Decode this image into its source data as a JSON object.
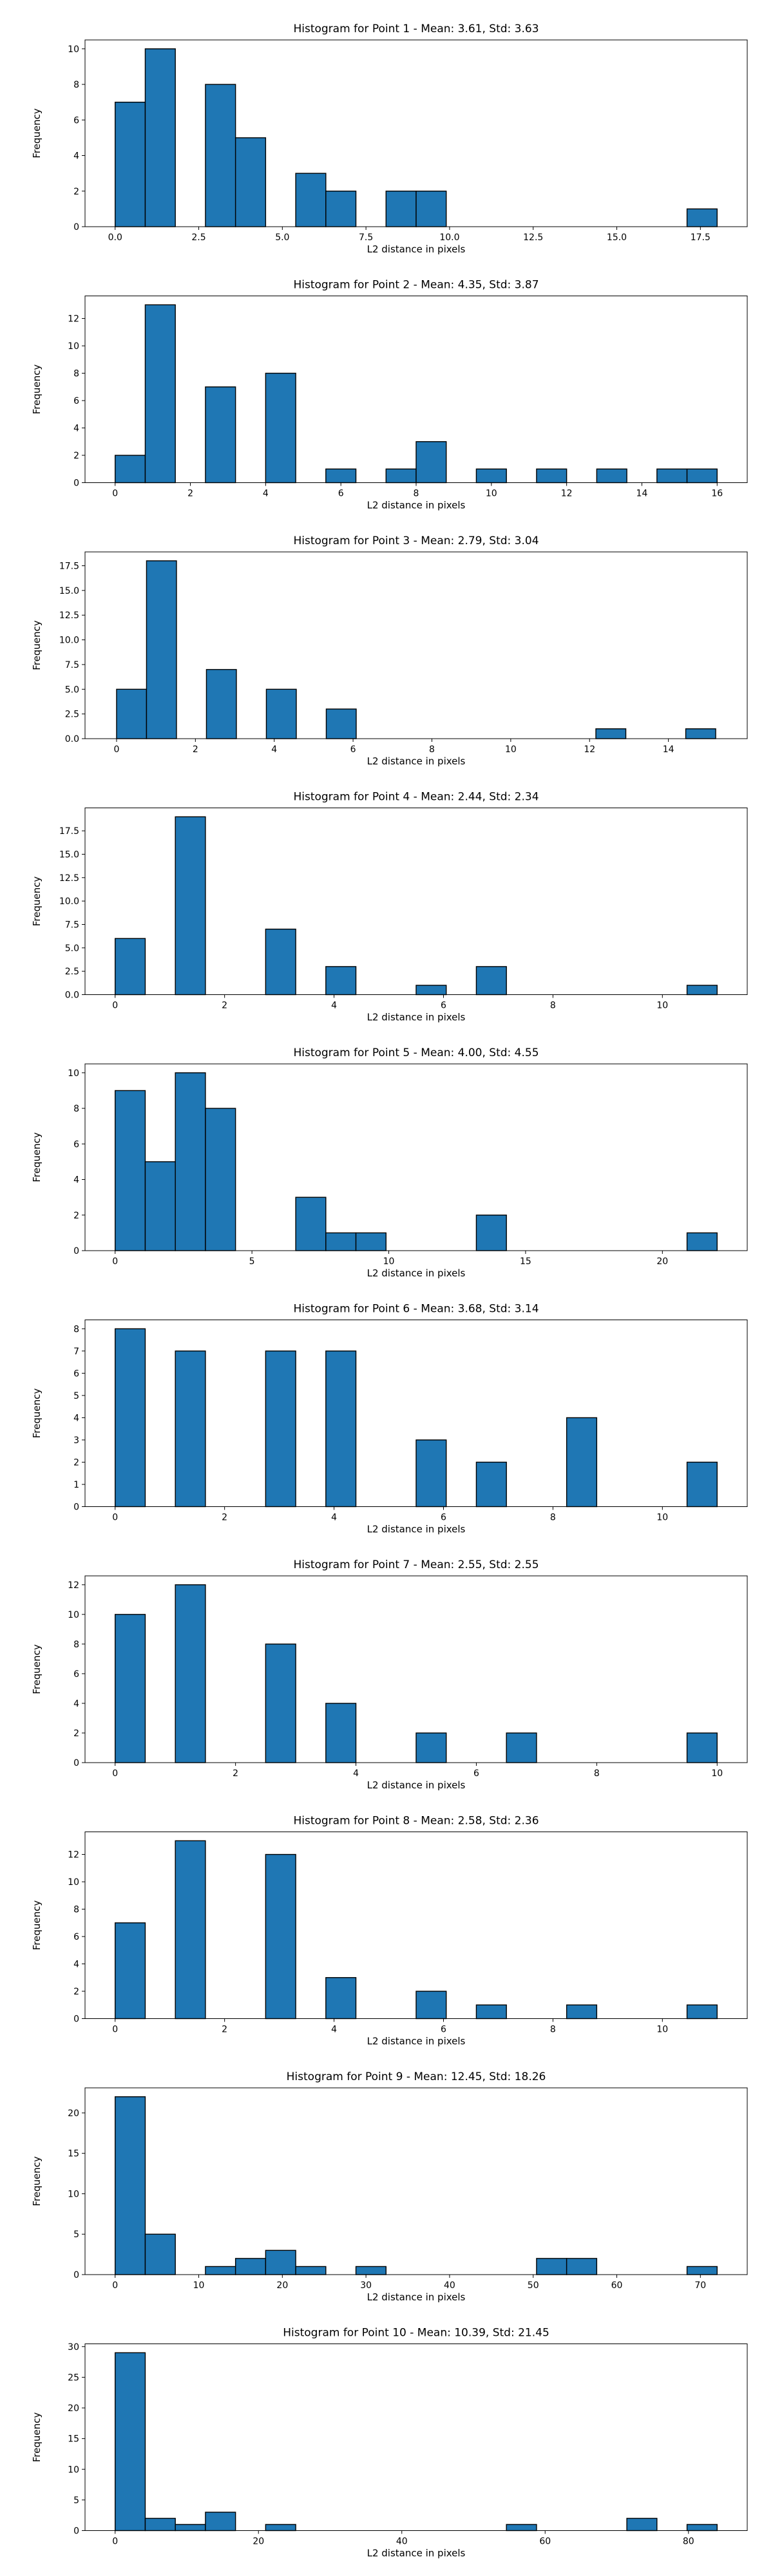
{
  "chart_data": [
    {
      "type": "bar",
      "title": "Histogram for Point 1 - Mean: 3.61, Std: 3.63",
      "xlabel": "L2 distance in pixels",
      "ylabel": "Frequency",
      "xlim": [
        -0.9,
        18.9
      ],
      "ylim": [
        0,
        10.5
      ],
      "xticks": [
        0,
        2.5,
        5,
        7.5,
        10,
        12.5,
        15,
        17.5
      ],
      "xtick_labels": [
        "0.0",
        "2.5",
        "5.0",
        "7.5",
        "10.0",
        "12.5",
        "15.0",
        "17.5"
      ],
      "yticks": [
        0,
        2,
        4,
        6,
        8,
        10
      ],
      "ytick_labels": [
        "0",
        "2",
        "4",
        "6",
        "8",
        "10"
      ],
      "bins": [
        [
          0,
          0.9,
          7
        ],
        [
          0.9,
          1.8,
          10
        ],
        [
          2.7,
          3.6,
          8
        ],
        [
          3.6,
          4.5,
          5
        ],
        [
          5.4,
          6.3,
          3
        ],
        [
          6.3,
          7.2,
          2
        ],
        [
          8.1,
          9.0,
          2
        ],
        [
          9.0,
          9.9,
          2
        ],
        [
          17.1,
          18.0,
          1
        ]
      ]
    },
    {
      "type": "bar",
      "title": "Histogram for Point 2 - Mean: 4.35, Std: 3.87",
      "xlabel": "L2 distance in pixels",
      "ylabel": "Frequency",
      "xlim": [
        -0.8,
        16.8
      ],
      "ylim": [
        0,
        13.65
      ],
      "xticks": [
        0,
        2,
        4,
        6,
        8,
        10,
        12,
        14,
        16
      ],
      "xtick_labels": [
        "0",
        "2",
        "4",
        "6",
        "8",
        "10",
        "12",
        "14",
        "16"
      ],
      "yticks": [
        0,
        2,
        4,
        6,
        8,
        10,
        12
      ],
      "ytick_labels": [
        "0",
        "2",
        "4",
        "6",
        "8",
        "10",
        "12"
      ],
      "bins": [
        [
          0,
          0.8,
          2
        ],
        [
          0.8,
          1.6,
          13
        ],
        [
          2.4,
          3.2,
          7
        ],
        [
          4.0,
          4.8,
          8
        ],
        [
          5.6,
          6.4,
          1
        ],
        [
          7.2,
          8.0,
          1
        ],
        [
          8.0,
          8.8,
          3
        ],
        [
          9.6,
          10.4,
          1
        ],
        [
          11.2,
          12.0,
          1
        ],
        [
          12.8,
          13.6,
          1
        ],
        [
          14.4,
          15.2,
          1
        ],
        [
          15.2,
          16.0,
          1
        ]
      ]
    },
    {
      "type": "bar",
      "title": "Histogram for Point 3 - Mean: 2.79, Std: 3.04",
      "xlabel": "L2 distance in pixels",
      "ylabel": "Frequency",
      "xlim": [
        -0.8,
        16.0
      ],
      "ylim": [
        0,
        18.9
      ],
      "xticks": [
        0,
        2,
        4,
        6,
        8,
        10,
        12,
        14
      ],
      "xtick_labels": [
        "0",
        "2",
        "4",
        "6",
        "8",
        "10",
        "12",
        "14"
      ],
      "yticks": [
        0,
        2.5,
        5,
        7.5,
        10,
        12.5,
        15,
        17.5
      ],
      "ytick_labels": [
        "0.0",
        "2.5",
        "5.0",
        "7.5",
        "10.0",
        "12.5",
        "15.0",
        "17.5"
      ],
      "bins": [
        [
          0,
          0.76,
          5
        ],
        [
          0.76,
          1.52,
          18
        ],
        [
          2.28,
          3.04,
          7
        ],
        [
          3.8,
          4.56,
          5
        ],
        [
          5.32,
          6.08,
          3
        ],
        [
          12.16,
          12.92,
          1
        ],
        [
          14.44,
          15.2,
          1
        ]
      ]
    },
    {
      "type": "bar",
      "title": "Histogram for Point 4 - Mean: 2.44, Std: 2.34",
      "xlabel": "L2 distance in pixels",
      "ylabel": "Frequency",
      "xlim": [
        -0.55,
        11.55
      ],
      "ylim": [
        0,
        19.95
      ],
      "xticks": [
        0,
        2,
        4,
        6,
        8,
        10
      ],
      "xtick_labels": [
        "0",
        "2",
        "4",
        "6",
        "8",
        "10"
      ],
      "yticks": [
        0,
        2.5,
        5,
        7.5,
        10,
        12.5,
        15,
        17.5
      ],
      "ytick_labels": [
        "0.0",
        "2.5",
        "5.0",
        "7.5",
        "10.0",
        "12.5",
        "15.0",
        "17.5"
      ],
      "bins": [
        [
          0,
          0.55,
          6
        ],
        [
          1.1,
          1.65,
          19
        ],
        [
          2.75,
          3.3,
          7
        ],
        [
          3.85,
          4.4,
          3
        ],
        [
          5.5,
          6.05,
          1
        ],
        [
          6.6,
          7.15,
          3
        ],
        [
          10.45,
          11.0,
          1
        ]
      ]
    },
    {
      "type": "bar",
      "title": "Histogram for Point 5 - Mean: 4.00, Std: 4.55",
      "xlabel": "L2 distance in pixels",
      "ylabel": "Frequency",
      "xlim": [
        -1.1,
        23.1
      ],
      "ylim": [
        0,
        10.5
      ],
      "xticks": [
        0,
        5,
        10,
        15,
        20
      ],
      "xtick_labels": [
        "0",
        "5",
        "10",
        "15",
        "20"
      ],
      "yticks": [
        0,
        2,
        4,
        6,
        8,
        10
      ],
      "ytick_labels": [
        "0",
        "2",
        "4",
        "6",
        "8",
        "10"
      ],
      "bins": [
        [
          0,
          1.1,
          9
        ],
        [
          1.1,
          2.2,
          5
        ],
        [
          2.2,
          3.3,
          10
        ],
        [
          3.3,
          4.4,
          8
        ],
        [
          6.6,
          7.7,
          3
        ],
        [
          7.7,
          8.8,
          1
        ],
        [
          8.8,
          9.9,
          1
        ],
        [
          13.2,
          14.3,
          2
        ],
        [
          20.9,
          22.0,
          1
        ]
      ]
    },
    {
      "type": "bar",
      "title": "Histogram for Point 6 - Mean: 3.68, Std: 3.14",
      "xlabel": "L2 distance in pixels",
      "ylabel": "Frequency",
      "xlim": [
        -0.55,
        11.55
      ],
      "ylim": [
        0,
        8.4
      ],
      "xticks": [
        0,
        2,
        4,
        6,
        8,
        10
      ],
      "xtick_labels": [
        "0",
        "2",
        "4",
        "6",
        "8",
        "10"
      ],
      "yticks": [
        0,
        1,
        2,
        3,
        4,
        5,
        6,
        7,
        8
      ],
      "ytick_labels": [
        "0",
        "1",
        "2",
        "3",
        "4",
        "5",
        "6",
        "7",
        "8"
      ],
      "bins": [
        [
          0,
          0.55,
          8
        ],
        [
          1.1,
          1.65,
          7
        ],
        [
          2.75,
          3.3,
          7
        ],
        [
          3.85,
          4.4,
          7
        ],
        [
          5.5,
          6.05,
          3
        ],
        [
          6.6,
          7.15,
          2
        ],
        [
          8.25,
          8.8,
          4
        ],
        [
          10.45,
          11.0,
          2
        ]
      ]
    },
    {
      "type": "bar",
      "title": "Histogram for Point 7 - Mean: 2.55, Std: 2.55",
      "xlabel": "L2 distance in pixels",
      "ylabel": "Frequency",
      "xlim": [
        -0.5,
        10.5
      ],
      "ylim": [
        0,
        12.6
      ],
      "xticks": [
        0,
        2,
        4,
        6,
        8,
        10
      ],
      "xtick_labels": [
        "0",
        "2",
        "4",
        "6",
        "8",
        "10"
      ],
      "yticks": [
        0,
        2,
        4,
        6,
        8,
        10,
        12
      ],
      "ytick_labels": [
        "0",
        "2",
        "4",
        "6",
        "8",
        "10",
        "12"
      ],
      "bins": [
        [
          0,
          0.5,
          10
        ],
        [
          1.0,
          1.5,
          12
        ],
        [
          2.5,
          3.0,
          8
        ],
        [
          3.5,
          4.0,
          4
        ],
        [
          5.0,
          5.5,
          2
        ],
        [
          6.5,
          7.0,
          2
        ],
        [
          9.5,
          10.0,
          2
        ]
      ]
    },
    {
      "type": "bar",
      "title": "Histogram for Point 8 - Mean: 2.58, Std: 2.36",
      "xlabel": "L2 distance in pixels",
      "ylabel": "Frequency",
      "xlim": [
        -0.55,
        11.55
      ],
      "ylim": [
        0,
        13.65
      ],
      "xticks": [
        0,
        2,
        4,
        6,
        8,
        10
      ],
      "xtick_labels": [
        "0",
        "2",
        "4",
        "6",
        "8",
        "10"
      ],
      "yticks": [
        0,
        2,
        4,
        6,
        8,
        10,
        12
      ],
      "ytick_labels": [
        "0",
        "2",
        "4",
        "6",
        "8",
        "10",
        "12"
      ],
      "bins": [
        [
          0,
          0.55,
          7
        ],
        [
          1.1,
          1.65,
          13
        ],
        [
          2.75,
          3.3,
          12
        ],
        [
          3.85,
          4.4,
          3
        ],
        [
          5.5,
          6.05,
          2
        ],
        [
          6.6,
          7.15,
          1
        ],
        [
          8.25,
          8.8,
          1
        ],
        [
          10.45,
          11.0,
          1
        ]
      ]
    },
    {
      "type": "bar",
      "title": "Histogram for Point 9 - Mean: 12.45, Std: 18.26",
      "xlabel": "L2 distance in pixels",
      "ylabel": "Frequency",
      "xlim": [
        -3.6,
        75.6
      ],
      "ylim": [
        0,
        23.1
      ],
      "xticks": [
        0,
        10,
        20,
        30,
        40,
        50,
        60,
        70
      ],
      "xtick_labels": [
        "0",
        "10",
        "20",
        "30",
        "40",
        "50",
        "60",
        "70"
      ],
      "yticks": [
        0,
        5,
        10,
        15,
        20
      ],
      "ytick_labels": [
        "0",
        "5",
        "10",
        "15",
        "20"
      ],
      "bins": [
        [
          0,
          3.6,
          22
        ],
        [
          3.6,
          7.2,
          5
        ],
        [
          10.8,
          14.4,
          1
        ],
        [
          14.4,
          18.0,
          2
        ],
        [
          18.0,
          21.6,
          3
        ],
        [
          21.6,
          25.2,
          1
        ],
        [
          28.8,
          32.4,
          1
        ],
        [
          50.4,
          54.0,
          2
        ],
        [
          54.0,
          57.6,
          2
        ],
        [
          68.4,
          72.0,
          1
        ]
      ]
    },
    {
      "type": "bar",
      "title": "Histogram for Point 10 - Mean: 10.39, Std: 21.45",
      "xlabel": "L2 distance in pixels",
      "ylabel": "Frequency",
      "xlim": [
        -4.2,
        88.2
      ],
      "ylim": [
        0,
        30.45
      ],
      "xticks": [
        0,
        20,
        40,
        60,
        80
      ],
      "xtick_labels": [
        "0",
        "20",
        "40",
        "60",
        "80"
      ],
      "yticks": [
        0,
        5,
        10,
        15,
        20,
        25,
        30
      ],
      "ytick_labels": [
        "0",
        "5",
        "10",
        "15",
        "20",
        "25",
        "30"
      ],
      "bins": [
        [
          0,
          4.2,
          29
        ],
        [
          4.2,
          8.4,
          2
        ],
        [
          8.4,
          12.6,
          1
        ],
        [
          12.6,
          16.8,
          3
        ],
        [
          21.0,
          25.2,
          1
        ],
        [
          54.6,
          58.8,
          1
        ],
        [
          71.4,
          75.6,
          2
        ],
        [
          79.8,
          84.0,
          1
        ]
      ]
    }
  ],
  "colors": {
    "bar_fill": "#1f77b4",
    "bar_edge": "#000000"
  }
}
